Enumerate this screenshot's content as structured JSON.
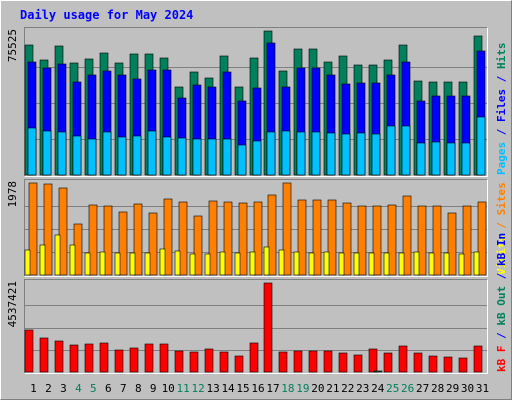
{
  "chart_data": {
    "type": "bar",
    "title": "Daily usage for May 2024",
    "categories": [
      "1",
      "2",
      "3",
      "4",
      "5",
      "6",
      "7",
      "8",
      "9",
      "10",
      "11",
      "12",
      "13",
      "14",
      "15",
      "16",
      "17",
      "18",
      "19",
      "20",
      "21",
      "22",
      "23",
      "24",
      "25",
      "26",
      "27",
      "28",
      "29",
      "30",
      "31"
    ],
    "weekend_days": [
      "4",
      "5",
      "11",
      "12",
      "18",
      "19",
      "25",
      "26"
    ],
    "panels": [
      {
        "name": "hits-files-pages",
        "ymax_label": "75525",
        "ymax": 75525,
        "ylabel_parts": [
          {
            "text": "Pages",
            "color": "#00c0ff"
          },
          {
            "text": " / ",
            "color": "#0000ff"
          },
          {
            "text": "Files",
            "color": "#0000ff"
          },
          {
            "text": " / ",
            "color": "#0000ff"
          },
          {
            "text": "Hits",
            "color": "#00805c"
          }
        ],
        "series": [
          {
            "name": "Hits",
            "color": "#00805c",
            "values": [
              68340,
              60140,
              67540,
              58830,
              60880,
              63780,
              58830,
              63380,
              63380,
              61290,
              46200,
              53980,
              50720,
              62340,
              46200,
              61290,
              75525,
              54800,
              66300,
              66300,
              59240,
              62340,
              57620,
              57620,
              60470,
              68340,
              49050,
              48640,
              48640,
              48640,
              73080
            ]
          },
          {
            "name": "Files",
            "color": "#0000ff",
            "values": [
              59240,
              55960,
              58010,
              48640,
              52320,
              54360,
              52320,
              50300,
              55140,
              55140,
              40450,
              47420,
              46200,
              53980,
              38860,
              45380,
              69170,
              46200,
              56360,
              56360,
              52320,
              47820,
              48230,
              48230,
              52320,
              59240,
              38860,
              41660,
              41660,
              41660,
              65120
            ]
          },
          {
            "name": "Pages",
            "color": "#00c0ff",
            "values": [
              24730,
              23100,
              22700,
              20630,
              19000,
              22700,
              19840,
              20220,
              23100,
              19840,
              19440,
              19000,
              19000,
              18620,
              15770,
              17800,
              22700,
              23100,
              22700,
              22700,
              21860,
              21470,
              21860,
              21470,
              25560,
              25560,
              16990,
              17400,
              16990,
              16990,
              30540
            ]
          }
        ]
      },
      {
        "name": "visits-sites",
        "ymax_label": "1978",
        "ymax": 1978,
        "ylabel_parts": [
          {
            "text": "Visits",
            "color": "#ffff00"
          },
          {
            "text": " / ",
            "color": "#ff8000"
          },
          {
            "text": "Sites",
            "color": "#ff8000"
          }
        ],
        "series": [
          {
            "name": "Sites",
            "color": "#ff8000",
            "values": [
              1978,
              1956,
              1870,
              1104,
              1498,
              1478,
              1358,
              1521,
              1330,
              1642,
              1568,
              1272,
              1590,
              1568,
              1545,
              1568,
              1728,
              1978,
              1610,
              1610,
              1610,
              1545,
              1478,
              1478,
              1498,
              1700,
              1478,
              1478,
              1330,
              1478,
              1568
            ]
          },
          {
            "name": "Visits",
            "color": "#ffff00",
            "values": [
              530,
              640,
              850,
              650,
              470,
              490,
              480,
              470,
              480,
              550,
              510,
              450,
              460,
              500,
              470,
              500,
              600,
              530,
              490,
              480,
              500,
              470,
              470,
              480,
              470,
              480,
              490,
              480,
              470,
              460,
              490
            ]
          }
        ]
      },
      {
        "name": "kbin-kbout-kbf",
        "ymax_label": "4537421",
        "ymax": 4537421,
        "ylabel_parts": [
          {
            "text": "kB F",
            "color": "#ff0000"
          },
          {
            "text": " / ",
            "color": "#0000ff"
          },
          {
            "text": "kB Out",
            "color": "#00805c"
          },
          {
            "text": " / ",
            "color": "#0000ff"
          },
          {
            "text": "kB In",
            "color": "#0000ff"
          }
        ],
        "series": [
          {
            "name": "kB F",
            "color": "#ff0000",
            "values": [
              2132000,
              1730000,
              1580000,
              1370000,
              1420000,
              1470000,
              1120000,
              1220000,
              1420000,
              1420000,
              1070000,
              1020000,
              1170000,
              1020000,
              810000,
              1470000,
              4537421,
              1020000,
              1070000,
              1070000,
              1070000,
              970000,
              860000,
              1170000,
              970000,
              1320000,
              970000,
              810000,
              760000,
              700000,
              1320000
            ]
          },
          {
            "name": "kB Out",
            "color": "#00805c",
            "values": [
              0,
              0,
              0,
              0,
              0,
              0,
              0,
              0,
              0,
              0,
              0,
              0,
              0,
              0,
              0,
              0,
              0,
              0,
              0,
              0,
              0,
              0,
              0,
              60000,
              0,
              0,
              0,
              0,
              0,
              0,
              0
            ]
          }
        ]
      }
    ]
  }
}
